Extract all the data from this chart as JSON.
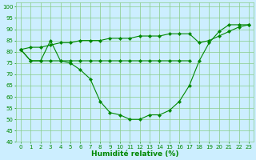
{
  "line_u": {
    "x": [
      0,
      1,
      2,
      3,
      4,
      5,
      6,
      7,
      8,
      9,
      10,
      11,
      12,
      13,
      14,
      15,
      16,
      17,
      18,
      19,
      20,
      21,
      22,
      23
    ],
    "y": [
      81,
      76,
      76,
      85,
      76,
      75,
      72,
      68,
      58,
      53,
      52,
      50,
      50,
      52,
      52,
      54,
      58,
      65,
      76,
      84,
      89,
      92,
      92,
      92
    ]
  },
  "line_flat": {
    "x": [
      0,
      1,
      2,
      3,
      4,
      5,
      6,
      7,
      8,
      9,
      10,
      11,
      12,
      13,
      14,
      15,
      16,
      17
    ],
    "y": [
      81,
      76,
      76,
      76,
      76,
      76,
      76,
      76,
      76,
      76,
      76,
      76,
      76,
      76,
      76,
      76,
      76,
      76
    ]
  },
  "line_top": {
    "x": [
      0,
      1,
      2,
      3,
      4,
      5,
      6,
      7,
      8,
      9,
      10,
      11,
      12,
      13,
      14,
      15,
      16,
      17,
      18,
      19,
      20,
      21,
      22,
      23
    ],
    "y": [
      81,
      82,
      82,
      83,
      84,
      84,
      85,
      85,
      85,
      86,
      86,
      86,
      87,
      87,
      87,
      88,
      88,
      88,
      84,
      85,
      87,
      89,
      91,
      92
    ]
  },
  "line_color": "#008800",
  "marker": "D",
  "marker_size": 2.2,
  "bg_color": "#cceeff",
  "grid_color": "#88cc88",
  "xlabel": "Humidité relative (%)",
  "xlabel_color": "#008800",
  "xlim": [
    -0.5,
    23.5
  ],
  "ylim": [
    40,
    102
  ],
  "yticks": [
    40,
    45,
    50,
    55,
    60,
    65,
    70,
    75,
    80,
    85,
    90,
    95,
    100
  ],
  "xticks": [
    0,
    1,
    2,
    3,
    4,
    5,
    6,
    7,
    8,
    9,
    10,
    11,
    12,
    13,
    14,
    15,
    16,
    17,
    18,
    19,
    20,
    21,
    22,
    23
  ],
  "tick_color": "#008800",
  "tick_fontsize": 5.0,
  "xlabel_fontsize": 6.5
}
